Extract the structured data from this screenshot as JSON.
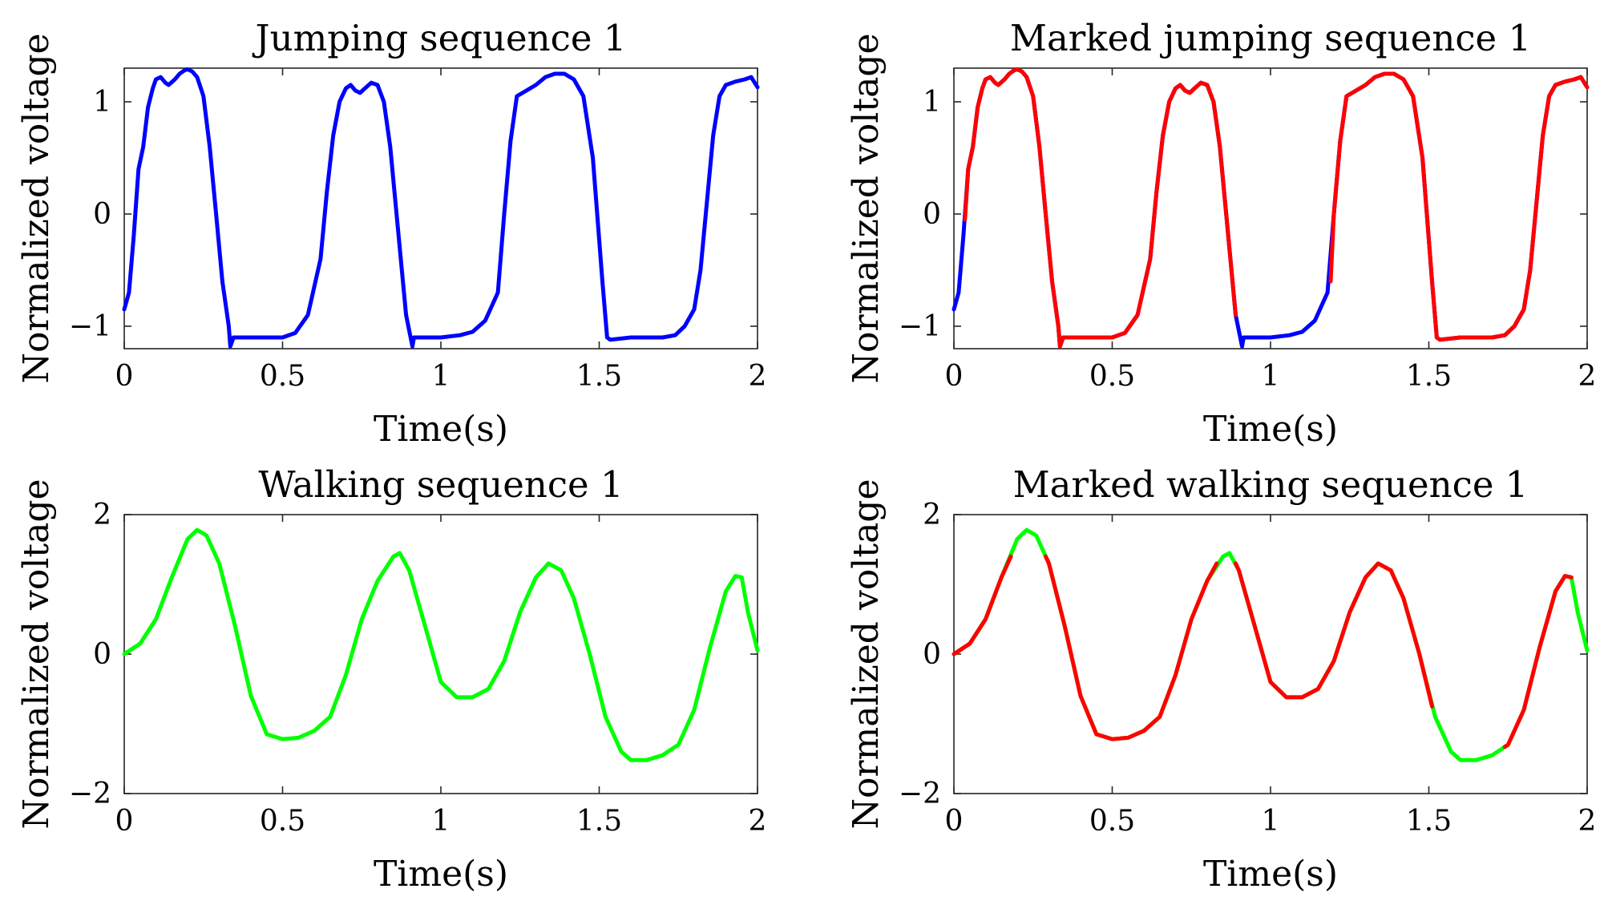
{
  "colors": {
    "jumping": "#0000FF",
    "walking": "#00FF00",
    "marked": "#FF0000"
  },
  "chart_data": [
    {
      "id": "jump",
      "type": "line",
      "title": "Jumping sequence 1",
      "xlabel": "Time(s)",
      "ylabel": "Normalized voltage",
      "xlim": [
        0,
        2
      ],
      "ylim": [
        -1.2,
        1.3
      ],
      "xticks": [
        0,
        0.5,
        1,
        1.5,
        2
      ],
      "xtick_labels": [
        "0",
        "0.5",
        "1",
        "1.5",
        "2"
      ],
      "yticks": [
        -1,
        0,
        1
      ],
      "ytick_labels": [
        "−1",
        "0",
        "1"
      ],
      "grid": false,
      "series": [
        {
          "name": "Jumping sequence 1",
          "color": "#0000FF",
          "x": [
            0,
            0.015,
            0.03,
            0.045,
            0.06,
            0.075,
            0.09,
            0.1,
            0.115,
            0.13,
            0.14,
            0.16,
            0.175,
            0.19,
            0.2,
            0.215,
            0.23,
            0.25,
            0.27,
            0.29,
            0.31,
            0.33,
            0.335,
            0.345,
            0.4,
            0.46,
            0.5,
            0.54,
            0.58,
            0.62,
            0.64,
            0.66,
            0.68,
            0.7,
            0.715,
            0.73,
            0.745,
            0.76,
            0.78,
            0.8,
            0.82,
            0.84,
            0.86,
            0.89,
            0.91,
            0.915,
            0.93,
            1.0,
            1.06,
            1.1,
            1.14,
            1.18,
            1.2,
            1.22,
            1.24,
            1.27,
            1.3,
            1.33,
            1.36,
            1.39,
            1.42,
            1.45,
            1.48,
            1.51,
            1.525,
            1.535,
            1.6,
            1.66,
            1.7,
            1.74,
            1.77,
            1.8,
            1.82,
            1.84,
            1.86,
            1.88,
            1.9,
            1.93,
            1.96,
            1.98,
            2.0
          ],
          "y": [
            -0.85,
            -0.7,
            -0.2,
            0.4,
            0.6,
            0.95,
            1.12,
            1.2,
            1.22,
            1.17,
            1.15,
            1.2,
            1.25,
            1.28,
            1.29,
            1.27,
            1.22,
            1.05,
            0.6,
            0.0,
            -0.6,
            -1.0,
            -1.18,
            -1.1,
            -1.1,
            -1.1,
            -1.1,
            -1.06,
            -0.9,
            -0.4,
            0.2,
            0.7,
            1.0,
            1.12,
            1.15,
            1.1,
            1.08,
            1.12,
            1.17,
            1.15,
            1.0,
            0.6,
            0.0,
            -0.9,
            -1.18,
            -1.1,
            -1.1,
            -1.1,
            -1.08,
            -1.05,
            -0.95,
            -0.7,
            0.0,
            0.65,
            1.05,
            1.1,
            1.15,
            1.22,
            1.25,
            1.25,
            1.2,
            1.05,
            0.5,
            -0.6,
            -1.1,
            -1.12,
            -1.1,
            -1.1,
            -1.1,
            -1.08,
            -1.0,
            -0.85,
            -0.5,
            0.1,
            0.7,
            1.05,
            1.15,
            1.18,
            1.2,
            1.22,
            1.13
          ]
        }
      ]
    },
    {
      "id": "mjump",
      "type": "line",
      "title": "Marked jumping sequence 1",
      "xlabel": "Time(s)",
      "ylabel": "Normalized voltage",
      "xlim": [
        0,
        2
      ],
      "ylim": [
        -1.2,
        1.3
      ],
      "xticks": [
        0,
        0.5,
        1,
        1.5,
        2
      ],
      "xtick_labels": [
        "0",
        "0.5",
        "1",
        "1.5",
        "2"
      ],
      "yticks": [
        -1,
        0,
        1
      ],
      "ytick_labels": [
        "−1",
        "0",
        "1"
      ],
      "grid": false,
      "series": [
        {
          "name": "Unmarked (blue)",
          "color": "#0000FF",
          "x": [
            0,
            0.015,
            0.03,
            0.045,
            0.06,
            0.075,
            0.09,
            0.1,
            0.115,
            0.13,
            0.14,
            0.16,
            0.175,
            0.19,
            0.2,
            0.215,
            0.23,
            0.25,
            0.27,
            0.29,
            0.31,
            0.33,
            0.335,
            0.345,
            0.4,
            0.46,
            0.5,
            0.54,
            0.58,
            0.62,
            0.64,
            0.66,
            0.68,
            0.7,
            0.715,
            0.73,
            0.745,
            0.76,
            0.78,
            0.8,
            0.82,
            0.84,
            0.86,
            0.89,
            0.91,
            0.915,
            0.93,
            1.0,
            1.06,
            1.1,
            1.14,
            1.18,
            1.2,
            1.22,
            1.24,
            1.27,
            1.3,
            1.33,
            1.36,
            1.39,
            1.42,
            1.45,
            1.48,
            1.51,
            1.525,
            1.535,
            1.6,
            1.66,
            1.7,
            1.74,
            1.77,
            1.8,
            1.82,
            1.84,
            1.86,
            1.88,
            1.9,
            1.93,
            1.96,
            1.98,
            2.0
          ],
          "y": [
            -0.85,
            -0.7,
            -0.2,
            0.4,
            0.6,
            0.95,
            1.12,
            1.2,
            1.22,
            1.17,
            1.15,
            1.2,
            1.25,
            1.28,
            1.29,
            1.27,
            1.22,
            1.05,
            0.6,
            0.0,
            -0.6,
            -1.0,
            -1.18,
            -1.1,
            -1.1,
            -1.1,
            -1.1,
            -1.06,
            -0.9,
            -0.4,
            0.2,
            0.7,
            1.0,
            1.12,
            1.15,
            1.1,
            1.08,
            1.12,
            1.17,
            1.15,
            1.0,
            0.6,
            0.0,
            -0.9,
            -1.18,
            -1.1,
            -1.1,
            -1.1,
            -1.08,
            -1.05,
            -0.95,
            -0.7,
            0.0,
            0.65,
            1.05,
            1.1,
            1.15,
            1.22,
            1.25,
            1.25,
            1.2,
            1.05,
            0.5,
            -0.6,
            -1.1,
            -1.12,
            -1.1,
            -1.1,
            -1.1,
            -1.08,
            -1.0,
            -0.85,
            -0.5,
            0.1,
            0.7,
            1.05,
            1.15,
            1.18,
            1.2,
            1.22,
            1.13
          ]
        },
        {
          "name": "Marked (red)",
          "color": "#FF0000",
          "segments": [
            {
              "x": [
                0.035,
                0.045,
                0.06,
                0.075,
                0.09,
                0.1,
                0.115,
                0.13,
                0.14,
                0.16,
                0.175,
                0.19,
                0.2,
                0.215,
                0.23,
                0.25,
                0.27,
                0.29,
                0.31,
                0.33,
                0.335,
                0.345,
                0.4,
                0.46,
                0.5,
                0.54,
                0.58,
                0.62,
                0.64,
                0.66,
                0.68,
                0.7,
                0.715,
                0.73,
                0.745,
                0.76,
                0.78,
                0.8,
                0.82,
                0.84,
                0.86,
                0.89
              ],
              "y": [
                -0.05,
                0.4,
                0.6,
                0.95,
                1.12,
                1.2,
                1.22,
                1.17,
                1.15,
                1.2,
                1.25,
                1.28,
                1.29,
                1.27,
                1.22,
                1.05,
                0.6,
                0.0,
                -0.6,
                -1.0,
                -1.18,
                -1.1,
                -1.1,
                -1.1,
                -1.1,
                -1.06,
                -0.9,
                -0.4,
                0.2,
                0.7,
                1.0,
                1.12,
                1.15,
                1.1,
                1.08,
                1.12,
                1.17,
                1.15,
                1.0,
                0.6,
                0.0,
                -0.9
              ]
            },
            {
              "x": [
                1.19,
                1.2,
                1.22,
                1.24,
                1.27,
                1.3,
                1.33,
                1.36,
                1.39,
                1.42,
                1.45,
                1.48,
                1.51,
                1.525,
                1.535,
                1.6,
                1.66,
                1.7,
                1.74,
                1.77,
                1.8,
                1.82,
                1.84,
                1.86,
                1.88,
                1.9,
                1.93,
                1.96,
                1.98,
                2.0
              ],
              "y": [
                -0.6,
                0.0,
                0.65,
                1.05,
                1.1,
                1.15,
                1.22,
                1.25,
                1.25,
                1.2,
                1.05,
                0.5,
                -0.6,
                -1.1,
                -1.12,
                -1.1,
                -1.1,
                -1.1,
                -1.08,
                -1.0,
                -0.85,
                -0.5,
                0.1,
                0.7,
                1.05,
                1.15,
                1.18,
                1.2,
                1.22,
                1.13
              ]
            }
          ]
        }
      ]
    },
    {
      "id": "walk",
      "type": "line",
      "title": "Walking sequence 1",
      "xlabel": "Time(s)",
      "ylabel": "Normalized voltage",
      "xlim": [
        0,
        2
      ],
      "ylim": [
        -2,
        2
      ],
      "xticks": [
        0,
        0.5,
        1,
        1.5,
        2
      ],
      "xtick_labels": [
        "0",
        "0.5",
        "1",
        "1.5",
        "2"
      ],
      "yticks": [
        -2,
        0,
        2
      ],
      "ytick_labels": [
        "−2",
        "0",
        "2"
      ],
      "grid": false,
      "series": [
        {
          "name": "Walking sequence 1",
          "color": "#00FF00",
          "x": [
            0,
            0.05,
            0.1,
            0.15,
            0.2,
            0.23,
            0.26,
            0.3,
            0.35,
            0.4,
            0.45,
            0.5,
            0.55,
            0.6,
            0.65,
            0.7,
            0.75,
            0.8,
            0.85,
            0.87,
            0.9,
            0.95,
            1.0,
            1.05,
            1.1,
            1.15,
            1.2,
            1.25,
            1.3,
            1.34,
            1.38,
            1.42,
            1.47,
            1.52,
            1.57,
            1.6,
            1.65,
            1.7,
            1.75,
            1.8,
            1.85,
            1.9,
            1.93,
            1.95,
            1.97,
            2.0
          ],
          "y": [
            0.0,
            0.15,
            0.5,
            1.1,
            1.65,
            1.78,
            1.7,
            1.3,
            0.4,
            -0.6,
            -1.15,
            -1.22,
            -1.2,
            -1.1,
            -0.9,
            -0.3,
            0.5,
            1.05,
            1.4,
            1.45,
            1.2,
            0.4,
            -0.4,
            -0.62,
            -0.62,
            -0.5,
            -0.1,
            0.6,
            1.1,
            1.3,
            1.2,
            0.8,
            0.0,
            -0.9,
            -1.4,
            -1.52,
            -1.52,
            -1.45,
            -1.3,
            -0.8,
            0.1,
            0.9,
            1.12,
            1.1,
            0.6,
            0.05
          ]
        }
      ]
    },
    {
      "id": "mwalk",
      "type": "line",
      "title": "Marked walking sequence 1",
      "xlabel": "Time(s)",
      "ylabel": "Normalized voltage",
      "xlim": [
        0,
        2
      ],
      "ylim": [
        -2,
        2
      ],
      "xticks": [
        0,
        0.5,
        1,
        1.5,
        2
      ],
      "xtick_labels": [
        "0",
        "0.5",
        "1",
        "1.5",
        "2"
      ],
      "yticks": [
        -2,
        0,
        2
      ],
      "ytick_labels": [
        "−2",
        "0",
        "2"
      ],
      "grid": false,
      "series": [
        {
          "name": "Unmarked (green)",
          "color": "#00FF00",
          "x": [
            0,
            0.05,
            0.1,
            0.15,
            0.2,
            0.23,
            0.26,
            0.3,
            0.35,
            0.4,
            0.45,
            0.5,
            0.55,
            0.6,
            0.65,
            0.7,
            0.75,
            0.8,
            0.85,
            0.87,
            0.9,
            0.95,
            1.0,
            1.05,
            1.1,
            1.15,
            1.2,
            1.25,
            1.3,
            1.34,
            1.38,
            1.42,
            1.47,
            1.52,
            1.57,
            1.6,
            1.65,
            1.7,
            1.75,
            1.8,
            1.85,
            1.9,
            1.93,
            1.95,
            1.97,
            2.0
          ],
          "y": [
            0.0,
            0.15,
            0.5,
            1.1,
            1.65,
            1.78,
            1.7,
            1.3,
            0.4,
            -0.6,
            -1.15,
            -1.22,
            -1.2,
            -1.1,
            -0.9,
            -0.3,
            0.5,
            1.05,
            1.4,
            1.45,
            1.2,
            0.4,
            -0.4,
            -0.62,
            -0.62,
            -0.5,
            -0.1,
            0.6,
            1.1,
            1.3,
            1.2,
            0.8,
            0.0,
            -0.9,
            -1.4,
            -1.52,
            -1.52,
            -1.45,
            -1.3,
            -0.8,
            0.1,
            0.9,
            1.12,
            1.1,
            0.6,
            0.05
          ]
        },
        {
          "name": "Marked (red)",
          "color": "#FF0000",
          "segments": [
            {
              "x": [
                0,
                0.05,
                0.1,
                0.15,
                0.18
              ],
              "y": [
                0.0,
                0.15,
                0.5,
                1.1,
                1.4
              ]
            },
            {
              "x": [
                0.29,
                0.3,
                0.35,
                0.4,
                0.45,
                0.5,
                0.55,
                0.6,
                0.65,
                0.7,
                0.75,
                0.8,
                0.83
              ],
              "y": [
                1.4,
                1.3,
                0.4,
                -0.6,
                -1.15,
                -1.22,
                -1.2,
                -1.1,
                -0.9,
                -0.3,
                0.5,
                1.05,
                1.3
              ]
            },
            {
              "x": [
                0.89,
                0.9,
                0.95,
                1.0,
                1.05,
                1.1,
                1.15,
                1.2,
                1.25,
                1.3,
                1.34,
                1.38,
                1.42,
                1.47,
                1.51
              ],
              "y": [
                1.3,
                1.2,
                0.4,
                -0.4,
                -0.62,
                -0.62,
                -0.5,
                -0.1,
                0.6,
                1.1,
                1.3,
                1.2,
                0.8,
                0.0,
                -0.75
              ]
            },
            {
              "x": [
                1.74,
                1.75,
                1.8,
                1.85,
                1.9,
                1.93,
                1.95
              ],
              "y": [
                -1.33,
                -1.3,
                -0.8,
                0.1,
                0.9,
                1.12,
                1.1
              ]
            }
          ]
        }
      ]
    }
  ]
}
